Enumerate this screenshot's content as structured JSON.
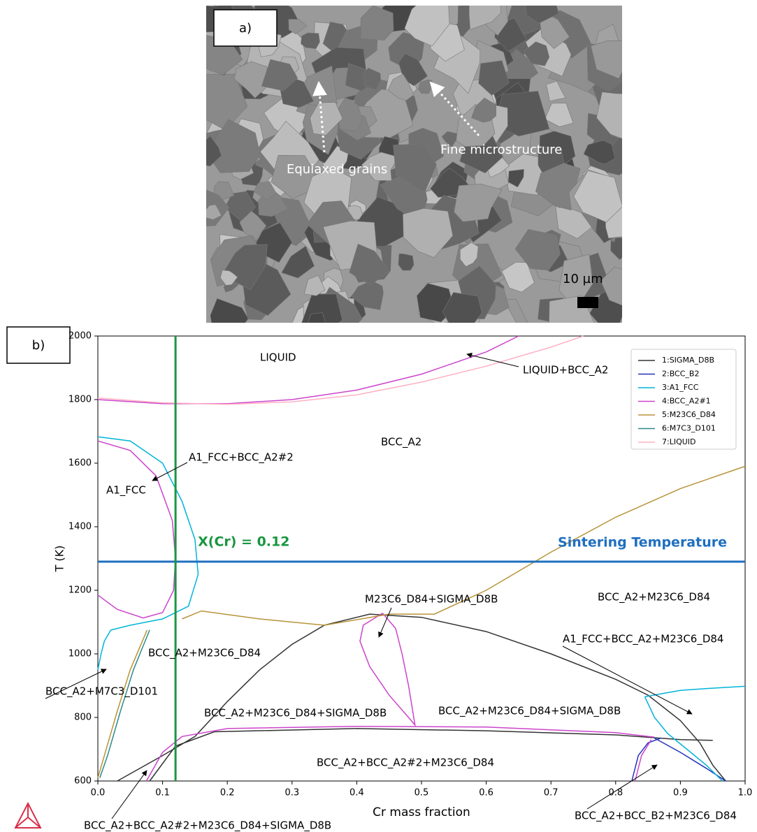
{
  "figure_a": {
    "label": "a)",
    "annotations": [
      "Equiaxed grains",
      "Fine microstructure"
    ],
    "scale_bar": "10 µm"
  },
  "chart_data": {
    "type": "line",
    "label": "b)",
    "xlabel": "Cr mass fraction",
    "ylabel": "T (K)",
    "xlim": [
      0,
      1
    ],
    "xticks": [
      {
        "value": 0,
        "label": "0.0"
      },
      0.1,
      0.2,
      0.3,
      0.4,
      0.5,
      0.6,
      0.7,
      0.8,
      0.9,
      {
        "value": 1,
        "label": "1.0"
      }
    ],
    "ylim": [
      600,
      2000
    ],
    "yticks": [
      600,
      800,
      1000,
      1200,
      1400,
      1600,
      1800,
      2000
    ],
    "legend": "upper right",
    "series": [
      {
        "name": "1:SIGMA_D8B",
        "color": "#333333",
        "x": [
          0.03,
          0.1,
          0.15,
          0.2,
          0.25,
          0.3,
          0.35,
          0.42,
          0.5,
          0.6,
          0.7,
          0.8,
          0.85,
          0.9,
          0.93,
          0.95,
          0.97,
          null,
          0.08,
          0.12,
          0.18,
          0.4,
          0.6,
          0.8,
          0.9,
          0.95
        ],
        "values": [
          600,
          680,
          740,
          850,
          950,
          1030,
          1090,
          1125,
          1115,
          1070,
          1000,
          920,
          870,
          790,
          720,
          650,
          600,
          null,
          600,
          710,
          755,
          765,
          758,
          745,
          730,
          728
        ]
      },
      {
        "name": "2:BCC_B2",
        "color": "#2233bb",
        "x": [
          0.825,
          0.835,
          0.85,
          0.87,
          null,
          0.86,
          0.9,
          0.94,
          0.97
        ],
        "values": [
          600,
          680,
          720,
          735,
          null,
          735,
          690,
          640,
          600
        ]
      },
      {
        "name": "3:A1_FCC",
        "color": "#00b4d8",
        "x": [
          0,
          0.05,
          0.1,
          0.13,
          0.15,
          0.155,
          0.14,
          0.1,
          0.05,
          0.02,
          0.01,
          0.005,
          0,
          null,
          0.845,
          0.9,
          0.95,
          1.0,
          null,
          0.845,
          0.86,
          0.88,
          0.91,
          0.94,
          0.965
        ],
        "values": [
          1683,
          1670,
          1600,
          1480,
          1360,
          1250,
          1150,
          1110,
          1090,
          1075,
          1040,
          1000,
          950,
          null,
          865,
          885,
          892,
          898,
          null,
          865,
          800,
          750,
          700,
          650,
          600
        ]
      },
      {
        "name": "4:BCC_A2#1",
        "color": "#cc44cc",
        "x": [
          0,
          0.1,
          0.2,
          0.3,
          0.4,
          0.5,
          0.6,
          0.65,
          null,
          0,
          0.05,
          0.09,
          0.115,
          0.12,
          0.117,
          0.1,
          0.07,
          0.03,
          0,
          null,
          0.44,
          0.41,
          0.405,
          0.42,
          0.45,
          0.48,
          0.49,
          0.48,
          0.47,
          0.46,
          0.44,
          null,
          0.075,
          0.1,
          0.13,
          0.2,
          0.4,
          0.6,
          0.8,
          0.86,
          null,
          0.83,
          0.84,
          0.855
        ],
        "values": [
          1800,
          1787,
          1787,
          1800,
          1830,
          1880,
          1950,
          2000,
          null,
          1670,
          1640,
          1560,
          1420,
          1300,
          1200,
          1130,
          1113,
          1140,
          1185,
          null,
          1128,
          1090,
          1040,
          960,
          870,
          800,
          776,
          900,
          1000,
          1080,
          1128,
          null,
          600,
          690,
          740,
          765,
          772,
          770,
          752,
          738,
          null,
          600,
          680,
          730
        ]
      },
      {
        "name": "5:M23C6_D84",
        "color": "#b8943a",
        "x": [
          0.13,
          0.16,
          0.25,
          0.35,
          0.45,
          0.52,
          0.6,
          0.7,
          0.8,
          0.9,
          1.0,
          null,
          0.076,
          0.05,
          0.03,
          0.01,
          0
        ],
        "values": [
          1110,
          1135,
          1110,
          1090,
          1125,
          1125,
          1200,
          1320,
          1430,
          1520,
          1590,
          null,
          1075,
          950,
          820,
          680,
          610
        ]
      },
      {
        "name": "6:M7C3_D101",
        "color": "#2e8b8b",
        "x": [
          0.08,
          0.055,
          0.035,
          0.015,
          0.003
        ],
        "values": [
          1075,
          950,
          820,
          680,
          610
        ]
      },
      {
        "name": "7:LIQUID",
        "color": "#ffb0c4",
        "x": [
          0,
          0.1,
          0.2,
          0.3,
          0.4,
          0.5,
          0.6,
          0.7,
          0.75
        ],
        "values": [
          1805,
          1790,
          1785,
          1793,
          1815,
          1855,
          1905,
          1965,
          2000
        ]
      }
    ],
    "reference_lines": [
      {
        "label": "Sintering Temperature",
        "y": 1290,
        "color": "#1f6fbf"
      },
      {
        "label": "X(Cr) = 0.12",
        "x": 0.12,
        "color": "#1a9641"
      }
    ],
    "annotations": [
      "LIQUID",
      "LIQUID+BCC_A2",
      "BCC_A2",
      "A1_FCC+BCC_A2#2",
      "A1_FCC",
      "M23C6_D84+SIGMA_D8B",
      "BCC_A2+M23C6_D84",
      "A1_FCC+BCC_A2+M23C6_D84",
      "BCC_A2+M23C6_D84",
      "BCC_A2+M7C3_D101",
      "BCC_A2+M23C6_D84+SIGMA_D8B",
      "BCC_A2+M23C6_D84+SIGMA_D8B",
      "BCC_A2+BCC_A2#2+M23C6_D84",
      "BCC_A2+BCC_A2#2+M23C6_D84+SIGMA_D8B",
      "BCC_A2+BCC_B2+M23C6_D84"
    ]
  }
}
